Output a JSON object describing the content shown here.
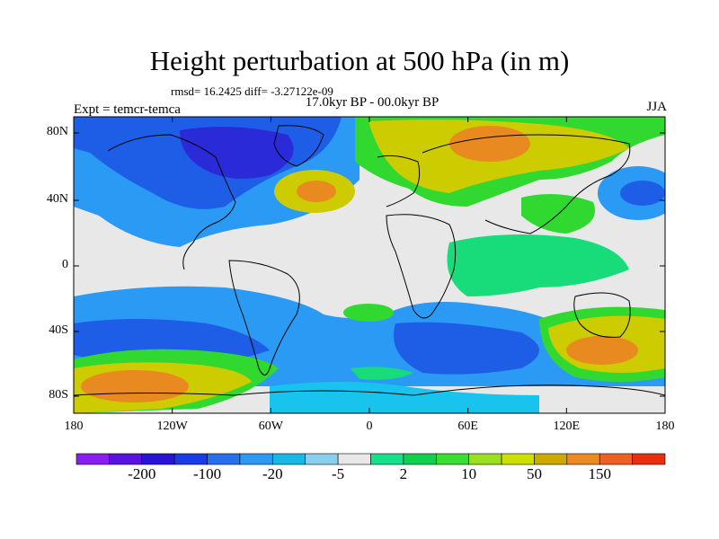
{
  "title": "Height perturbation at 500 hPa (in m)",
  "stats": "rmsd= 16.2425  diff= -3.27122e-09",
  "expt": "Expt = temcr-temca",
  "period": "17.0kyr BP - 00.0kyr BP",
  "season": "JJA",
  "y_ticks": [
    "80N",
    "40N",
    "0",
    "40S",
    "80S"
  ],
  "x_ticks": [
    "180",
    "120W",
    "60W",
    "0",
    "60E",
    "120E",
    "180"
  ],
  "colorbar": {
    "labels": [
      "-200",
      "-100",
      "-20",
      "-5",
      "2",
      "10",
      "50",
      "150"
    ],
    "colors": [
      "#8a1ef0",
      "#5a12e0",
      "#2a14d8",
      "#1a3ce6",
      "#2a6ef0",
      "#2a9af5",
      "#18b8ea",
      "#8ad0ee",
      "#e8e8e8",
      "#18e08a",
      "#10d050",
      "#38e030",
      "#9ae020",
      "#cce000",
      "#cca800",
      "#ee8a20",
      "#f06020",
      "#e83010"
    ]
  },
  "colors": {
    "land_fill": "#eaeaea",
    "coast": "#000000",
    "blue_dark": "#2a2ad8",
    "blue": "#1e5ee6",
    "blue_light": "#2a9af5",
    "cyan": "#18c4ee",
    "neutral": "#e8e8e8",
    "green": "#18dc7a",
    "green_bright": "#30d830",
    "yellow": "#cccc00",
    "orange": "#e88a20"
  }
}
